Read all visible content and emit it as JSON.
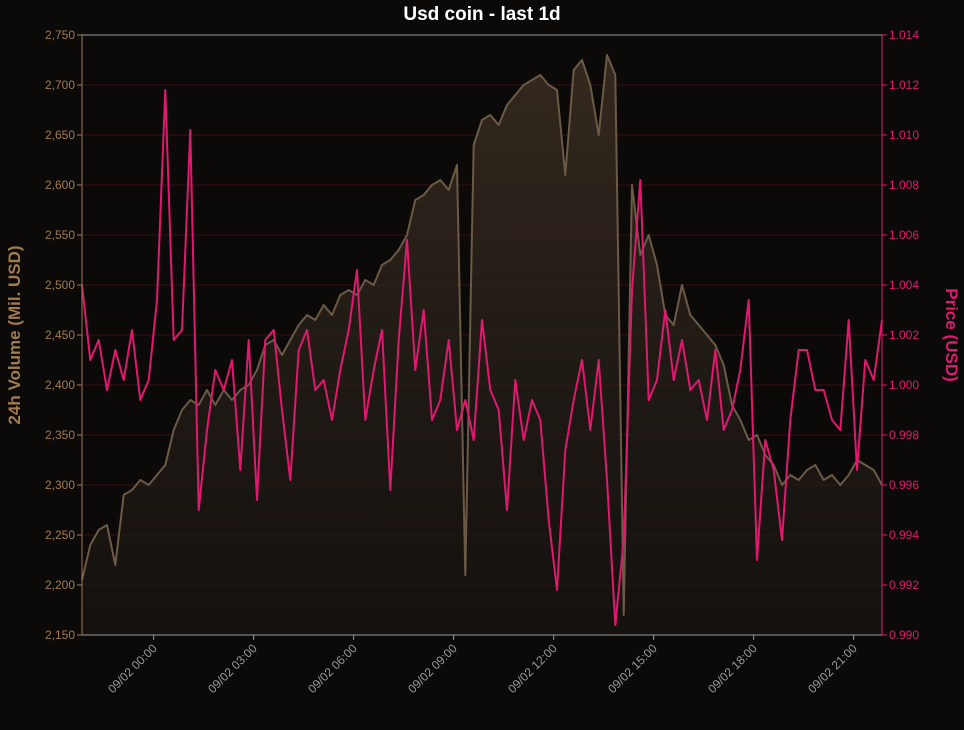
{
  "chart_data": {
    "type": "line",
    "title": "Usd coin - last 1d",
    "y_label": "24h Volume (Mil. USD)",
    "y2_label": "Price (USD)",
    "x": [
      -2.15,
      -1.9,
      -1.65,
      -1.4,
      -1.15,
      -0.9,
      -0.65,
      -0.4,
      -0.15,
      0.1,
      0.35,
      0.6,
      0.85,
      1.1,
      1.35,
      1.6,
      1.85,
      2.1,
      2.35,
      2.6,
      2.85,
      3.1,
      3.35,
      3.6,
      3.85,
      4.1,
      4.35,
      4.6,
      4.85,
      5.1,
      5.35,
      5.6,
      5.85,
      6.1,
      6.35,
      6.6,
      6.85,
      7.1,
      7.35,
      7.6,
      7.85,
      8.1,
      8.35,
      8.6,
      8.85,
      9.1,
      9.35,
      9.6,
      9.85,
      10.1,
      10.35,
      10.6,
      10.85,
      11.1,
      11.35,
      11.6,
      11.85,
      12.1,
      12.35,
      12.6,
      12.85,
      13.1,
      13.35,
      13.6,
      13.85,
      14.1,
      14.35,
      14.6,
      14.85,
      15.1,
      15.35,
      15.6,
      15.85,
      16.1,
      16.35,
      16.6,
      16.85,
      17.1,
      17.35,
      17.6,
      17.85,
      18.1,
      18.35,
      18.6,
      18.85,
      19.1,
      19.35,
      19.6,
      19.85,
      20.1,
      20.35,
      20.6,
      20.85,
      21.1,
      21.35,
      21.6,
      21.85
    ],
    "series": [
      {
        "color": "#6b5a45",
        "fill": true,
        "axis": "y",
        "values": [
          2205,
          2240,
          2255,
          2260,
          2220,
          2290,
          2295,
          2305,
          2300,
          2310,
          2320,
          2355,
          2375,
          2385,
          2380,
          2395,
          2380,
          2395,
          2385,
          2395,
          2400,
          2415,
          2440,
          2445,
          2430,
          2445,
          2460,
          2470,
          2465,
          2480,
          2470,
          2490,
          2495,
          2490,
          2505,
          2500,
          2520,
          2525,
          2535,
          2550,
          2585,
          2590,
          2600,
          2605,
          2595,
          2620,
          2210,
          2640,
          2665,
          2670,
          2660,
          2680,
          2690,
          2700,
          2705,
          2710,
          2700,
          2695,
          2610,
          2715,
          2725,
          2700,
          2650,
          2730,
          2710,
          2170,
          2600,
          2530,
          2550,
          2520,
          2470,
          2460,
          2500,
          2470,
          2460,
          2450,
          2440,
          2420,
          2380,
          2365,
          2345,
          2350,
          2330,
          2320,
          2300,
          2310,
          2305,
          2315,
          2320,
          2305,
          2310,
          2300,
          2310,
          2325,
          2320,
          2315,
          2300
        ]
      },
      {
        "color": "#e0196f",
        "axis": "y2",
        "values": [
          1.004,
          1.001,
          1.0018,
          0.9998,
          1.0014,
          1.0002,
          1.0022,
          0.9994,
          1.0002,
          1.0034,
          1.0118,
          1.0018,
          1.0022,
          1.0102,
          0.995,
          0.9982,
          1.0006,
          0.9998,
          1.001,
          0.9966,
          1.0018,
          0.9954,
          1.0018,
          1.0022,
          0.999,
          0.9962,
          1.0014,
          1.0022,
          0.9998,
          1.0002,
          0.9986,
          1.0006,
          1.0022,
          1.0046,
          0.9986,
          1.0006,
          1.0022,
          0.9958,
          1.0018,
          1.0058,
          1.0006,
          1.003,
          0.9986,
          0.9994,
          1.0018,
          0.9982,
          0.9994,
          0.9978,
          1.0026,
          0.9998,
          0.999,
          0.995,
          1.0002,
          0.9978,
          0.9994,
          0.9986,
          0.9946,
          0.9918,
          0.9974,
          0.9994,
          1.001,
          0.9982,
          1.001,
          0.9962,
          0.9904,
          0.9938,
          1.0038,
          1.0082,
          0.9994,
          1.0002,
          1.003,
          1.0002,
          1.0018,
          0.9998,
          1.0002,
          0.9986,
          1.0014,
          0.9982,
          0.999,
          1.0006,
          1.0034,
          0.993,
          0.9978,
          0.9966,
          0.9938,
          0.9986,
          1.0014,
          1.0014,
          0.9998,
          0.9998,
          0.9986,
          0.9982,
          1.0026,
          0.9966,
          1.001,
          1.0002,
          1.0026
        ]
      }
    ],
    "xlim": [
      -2.15,
      21.85
    ],
    "xticks": [
      {
        "value": 0,
        "label": "09/02 00:00"
      },
      {
        "value": 3,
        "label": "09/02 03:00"
      },
      {
        "value": 6,
        "label": "09/02 06:00"
      },
      {
        "value": 9,
        "label": "09/02 09:00"
      },
      {
        "value": 12,
        "label": "09/02 12:00"
      },
      {
        "value": 15,
        "label": "09/02 15:00"
      },
      {
        "value": 18,
        "label": "09/02 18:00"
      },
      {
        "value": 21,
        "label": "09/02 21:00"
      }
    ],
    "ylim": [
      2150,
      2750
    ],
    "yticks": [
      {
        "value": 2150,
        "label": "2,150"
      },
      {
        "value": 2200,
        "label": "2,200"
      },
      {
        "value": 2250,
        "label": "2,250"
      },
      {
        "value": 2300,
        "label": "2,300"
      },
      {
        "value": 2350,
        "label": "2,350"
      },
      {
        "value": 2400,
        "label": "2,400"
      },
      {
        "value": 2450,
        "label": "2,450"
      },
      {
        "value": 2500,
        "label": "2,500"
      },
      {
        "value": 2550,
        "label": "2,550"
      },
      {
        "value": 2600,
        "label": "2,600"
      },
      {
        "value": 2650,
        "label": "2,650"
      },
      {
        "value": 2700,
        "label": "2,700"
      },
      {
        "value": 2750,
        "label": "2,750"
      }
    ],
    "y2lim": [
      0.99,
      1.014
    ],
    "y2ticks": [
      {
        "value": 0.99,
        "label": "0.990"
      },
      0.992,
      0.994,
      0.996,
      0.998,
      {
        "value": 1,
        "label": "1.000"
      },
      1.002,
      1.004,
      1.006,
      1.008,
      {
        "value": 1.01,
        "label": "1.010"
      },
      1.012,
      1.014
    ],
    "grid": true
  }
}
